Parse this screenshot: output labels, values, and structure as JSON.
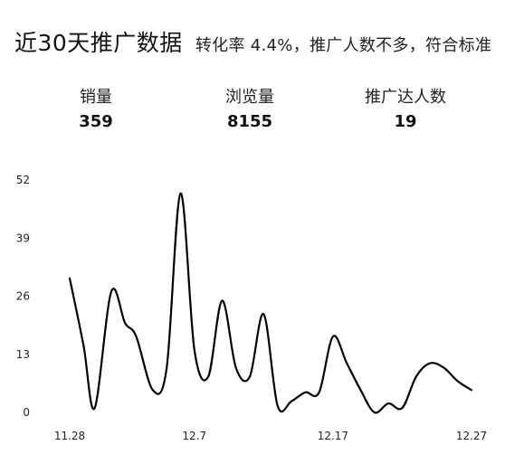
{
  "header": {
    "title": "近30天推广数据",
    "subtitle": "转化率 4.4%，推广人数不多，符合标准"
  },
  "stats": [
    {
      "label": "销量",
      "value": "359"
    },
    {
      "label": "浏览量",
      "value": "8155"
    },
    {
      "label": "推广达人数",
      "value": "19"
    }
  ],
  "chart_data": {
    "type": "line",
    "title": "",
    "xlabel": "",
    "ylabel": "",
    "y_ticks": [
      0,
      13,
      26,
      39,
      52
    ],
    "ylim": [
      0,
      52
    ],
    "x_tick_labels": [
      {
        "day": 0,
        "label": "11.28"
      },
      {
        "day": 9,
        "label": "12.7"
      },
      {
        "day": 19,
        "label": "12.17"
      },
      {
        "day": 29,
        "label": "12.27"
      }
    ],
    "xlim": [
      0,
      29
    ],
    "grid": false,
    "line_color": "#000000",
    "x": [
      0,
      1,
      1.8,
      3,
      4,
      4.8,
      6,
      7,
      8,
      9,
      10,
      11,
      12,
      13,
      14,
      15,
      16,
      17,
      18,
      19,
      20,
      21,
      22,
      23,
      24,
      25,
      26,
      27,
      28,
      29
    ],
    "values": [
      30,
      15,
      1,
      27,
      20,
      17,
      5,
      10,
      49,
      14,
      8,
      25,
      10,
      8,
      22,
      1.5,
      2.5,
      4.5,
      4.5,
      17,
      11,
      5,
      0,
      2,
      1,
      8,
      11,
      10,
      7,
      5
    ]
  }
}
